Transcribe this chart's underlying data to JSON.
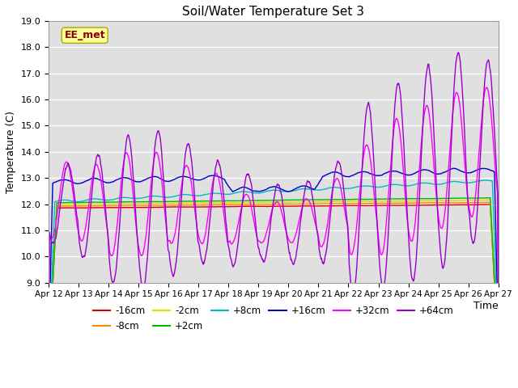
{
  "title": "Soil/Water Temperature Set 3",
  "xlabel": "Time",
  "ylabel": "Temperature (C)",
  "ylim": [
    9.0,
    19.0
  ],
  "yticks": [
    9.0,
    10.0,
    11.0,
    12.0,
    13.0,
    14.0,
    15.0,
    16.0,
    17.0,
    18.0,
    19.0
  ],
  "xtick_labels": [
    "Apr 12",
    "Apr 13",
    "Apr 14",
    "Apr 15",
    "Apr 16",
    "Apr 17",
    "Apr 18",
    "Apr 19",
    "Apr 20",
    "Apr 21",
    "Apr 22",
    "Apr 23",
    "Apr 24",
    "Apr 25",
    "Apr 26",
    "Apr 27"
  ],
  "series": {
    "-16cm": {
      "color": "#dd0000",
      "lw": 1.0
    },
    "-8cm": {
      "color": "#ff8800",
      "lw": 1.0
    },
    "-2cm": {
      "color": "#dddd00",
      "lw": 1.0
    },
    "+2cm": {
      "color": "#00bb00",
      "lw": 1.0
    },
    "+8cm": {
      "color": "#00bbbb",
      "lw": 1.0
    },
    "+16cm": {
      "color": "#0000cc",
      "lw": 1.0
    },
    "+32cm": {
      "color": "#ff00ff",
      "lw": 1.0
    },
    "+64cm": {
      "color": "#9900cc",
      "lw": 1.0
    }
  },
  "watermark_text": "EE_met",
  "watermark_color": "#8b0000",
  "watermark_bg": "#ffff99",
  "plot_bg": "#e0e0e0"
}
